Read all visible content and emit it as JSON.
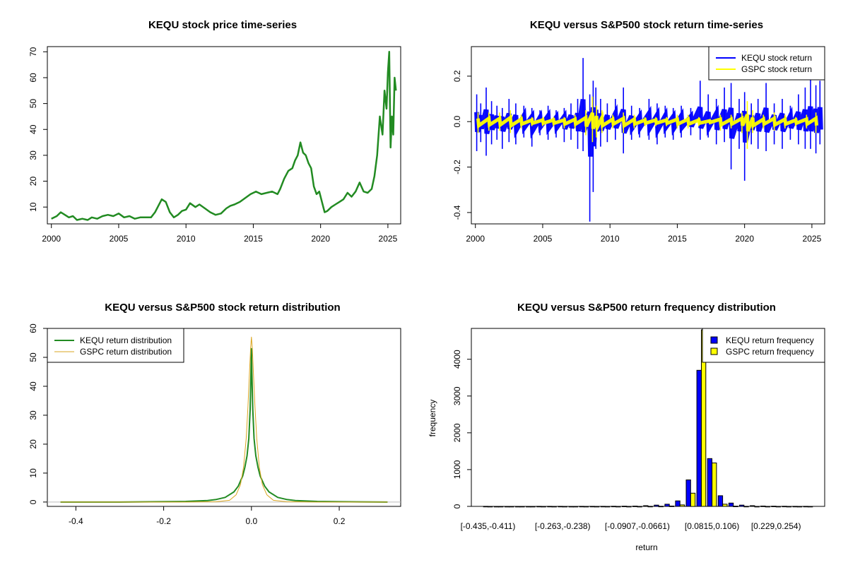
{
  "chart_data": [
    {
      "type": "line",
      "title": "KEQU stock price time-series",
      "xlabel": "",
      "ylabel": "",
      "xlim": [
        1999.7,
        2025.95
      ],
      "ylim": [
        3.5,
        72
      ],
      "xticks": [
        2000,
        2005,
        2010,
        2015,
        2020,
        2025
      ],
      "yticks": [
        10,
        20,
        30,
        40,
        50,
        60,
        70
      ],
      "series": [
        {
          "name": "KEQU price",
          "color": "#228B22",
          "x": [
            2000.0,
            2000.4,
            2000.7,
            2001.0,
            2001.3,
            2001.6,
            2001.9,
            2002.3,
            2002.7,
            2003.0,
            2003.4,
            2003.8,
            2004.2,
            2004.6,
            2005.0,
            2005.4,
            2005.8,
            2006.2,
            2006.6,
            2007.0,
            2007.4,
            2007.7,
            2007.9,
            2008.2,
            2008.5,
            2008.8,
            2009.1,
            2009.4,
            2009.7,
            2010.0,
            2010.3,
            2010.7,
            2011.0,
            2011.4,
            2011.8,
            2012.2,
            2012.6,
            2013.0,
            2013.3,
            2013.6,
            2014.0,
            2014.4,
            2014.8,
            2015.2,
            2015.6,
            2016.0,
            2016.4,
            2016.8,
            2017.0,
            2017.3,
            2017.6,
            2017.9,
            2018.1,
            2018.3,
            2018.5,
            2018.7,
            2018.9,
            2019.1,
            2019.3,
            2019.5,
            2019.7,
            2019.9,
            2020.1,
            2020.3,
            2020.5,
            2020.8,
            2021.1,
            2021.4,
            2021.7,
            2022.0,
            2022.3,
            2022.6,
            2022.9,
            2023.2,
            2023.5,
            2023.8,
            2024.0,
            2024.2,
            2024.4,
            2024.6,
            2024.75,
            2024.9,
            2025.0,
            2025.1,
            2025.2,
            2025.3,
            2025.4,
            2025.5,
            2025.6
          ],
          "y": [
            5.5,
            6.5,
            8.0,
            7.0,
            6.0,
            6.5,
            5.0,
            5.5,
            5.0,
            6.0,
            5.5,
            6.5,
            7.0,
            6.5,
            7.5,
            6.0,
            6.5,
            5.5,
            6.0,
            6.0,
            6.0,
            8.0,
            10.0,
            13.0,
            12.0,
            8.0,
            6.0,
            7.0,
            8.5,
            9.0,
            11.5,
            10.0,
            11.0,
            9.5,
            8.0,
            7.0,
            7.5,
            9.5,
            10.5,
            11.0,
            12.0,
            13.5,
            15.0,
            16.0,
            15.0,
            15.5,
            16.0,
            15.0,
            17.0,
            21.0,
            24.0,
            25.0,
            28.0,
            30.0,
            35.0,
            31.0,
            30.0,
            27.0,
            25.0,
            18.0,
            15.0,
            16.0,
            12.0,
            8.0,
            8.5,
            10.0,
            11.0,
            12.0,
            13.0,
            15.5,
            14.0,
            16.0,
            19.5,
            16.0,
            15.5,
            17.0,
            22.0,
            30.0,
            45.0,
            38.0,
            55.0,
            48.0,
            62.0,
            70.0,
            33.0,
            45.0,
            38.0,
            60.0,
            55.0
          ]
        }
      ]
    },
    {
      "type": "line",
      "title": "KEQU versus S&P500 stock return time-series",
      "xlabel": "",
      "ylabel": "",
      "xlim": [
        1999.7,
        2025.95
      ],
      "ylim": [
        -0.45,
        0.33
      ],
      "xticks": [
        2000,
        2005,
        2010,
        2015,
        2020,
        2025
      ],
      "yticks": [
        -0.4,
        -0.2,
        0.0,
        0.2
      ],
      "series": [
        {
          "name": "KEQU stock return",
          "color": "#0000FF",
          "x": [
            2000.1,
            2000.4,
            2000.8,
            2001.2,
            2001.6,
            2002.0,
            2002.5,
            2003.0,
            2003.6,
            2004.2,
            2004.8,
            2005.4,
            2006.0,
            2006.6,
            2007.1,
            2007.6,
            2008.0,
            2008.5,
            2008.75,
            2008.95,
            2009.3,
            2009.8,
            2010.4,
            2011.0,
            2011.6,
            2012.2,
            2012.9,
            2013.5,
            2014.1,
            2014.7,
            2015.3,
            2016.0,
            2016.7,
            2017.3,
            2017.9,
            2018.5,
            2019.0,
            2019.6,
            2020.0,
            2020.5,
            2021.0,
            2021.6,
            2022.2,
            2022.8,
            2023.4,
            2024.0,
            2024.5,
            2024.9,
            2025.3,
            2025.6
          ],
          "hi": [
            0.12,
            0.08,
            0.15,
            0.09,
            0.07,
            0.06,
            0.1,
            0.08,
            0.07,
            0.06,
            0.05,
            0.07,
            0.05,
            0.06,
            0.08,
            0.1,
            0.28,
            0.12,
            0.18,
            0.15,
            0.1,
            0.08,
            0.1,
            0.15,
            0.07,
            0.06,
            0.1,
            0.08,
            0.07,
            0.06,
            0.07,
            0.06,
            0.18,
            0.12,
            0.1,
            0.15,
            0.17,
            0.1,
            0.13,
            0.08,
            0.1,
            0.17,
            0.08,
            0.1,
            0.07,
            0.12,
            0.15,
            0.19,
            0.16,
            0.18
          ],
          "lo": [
            -0.13,
            -0.09,
            -0.15,
            -0.1,
            -0.08,
            -0.12,
            -0.09,
            -0.1,
            -0.07,
            -0.11,
            -0.06,
            -0.08,
            -0.07,
            -0.09,
            -0.08,
            -0.12,
            -0.13,
            -0.44,
            -0.31,
            -0.12,
            -0.11,
            -0.09,
            -0.08,
            -0.14,
            -0.08,
            -0.07,
            -0.08,
            -0.1,
            -0.07,
            -0.08,
            -0.07,
            -0.06,
            -0.08,
            -0.07,
            -0.1,
            -0.09,
            -0.21,
            -0.12,
            -0.26,
            -0.1,
            -0.12,
            -0.13,
            -0.1,
            -0.12,
            -0.08,
            -0.1,
            -0.12,
            -0.12,
            -0.14,
            -0.1
          ]
        },
        {
          "name": "GSPC stock return",
          "color": "#FFFF00",
          "x": [
            2000.2,
            2001.0,
            2001.8,
            2002.6,
            2003.4,
            2004.2,
            2005.0,
            2005.8,
            2006.6,
            2007.4,
            2008.2,
            2008.7,
            2009.0,
            2009.4,
            2010.2,
            2011.0,
            2011.8,
            2012.6,
            2013.4,
            2014.2,
            2015.0,
            2015.8,
            2016.6,
            2017.4,
            2018.2,
            2019.0,
            2019.8,
            2020.2,
            2020.6,
            2021.4,
            2022.2,
            2023.0,
            2023.8,
            2024.6,
            2025.3
          ],
          "hi": [
            0.04,
            0.04,
            0.04,
            0.05,
            0.03,
            0.02,
            0.02,
            0.02,
            0.02,
            0.03,
            0.05,
            0.11,
            0.07,
            0.05,
            0.03,
            0.04,
            0.03,
            0.02,
            0.02,
            0.02,
            0.03,
            0.03,
            0.02,
            0.01,
            0.03,
            0.03,
            0.04,
            0.09,
            0.05,
            0.03,
            0.04,
            0.03,
            0.02,
            0.03,
            0.04
          ],
          "lo": [
            -0.05,
            -0.04,
            -0.04,
            -0.05,
            -0.03,
            -0.02,
            -0.02,
            -0.02,
            -0.03,
            -0.03,
            -0.06,
            -0.09,
            -0.07,
            -0.05,
            -0.03,
            -0.05,
            -0.03,
            -0.02,
            -0.02,
            -0.02,
            -0.03,
            -0.03,
            -0.02,
            -0.01,
            -0.04,
            -0.03,
            -0.05,
            -0.12,
            -0.05,
            -0.03,
            -0.04,
            -0.03,
            -0.02,
            -0.03,
            -0.05
          ]
        }
      ],
      "legend": [
        "KEQU stock return",
        "GSPC stock return"
      ],
      "legend_position": "top-right"
    },
    {
      "type": "line",
      "title": "KEQU versus S&P500 stock return distribution",
      "xlabel": "",
      "ylabel": "",
      "xlim": [
        -0.465,
        0.34
      ],
      "ylim": [
        -1.5,
        60
      ],
      "xticks": [
        -0.4,
        -0.2,
        0.0,
        0.2
      ],
      "xtick_labels": [
        "-0.4",
        "-0.2",
        "0.0",
        "0.2"
      ],
      "yticks": [
        0,
        10,
        20,
        30,
        40,
        50,
        60
      ],
      "series": [
        {
          "name": "KEQU return distribution",
          "color": "#228B22",
          "x": [
            -0.435,
            -0.3,
            -0.15,
            -0.1,
            -0.08,
            -0.06,
            -0.04,
            -0.03,
            -0.02,
            -0.015,
            -0.01,
            -0.006,
            -0.003,
            -0.001,
            0.0,
            0.001,
            0.003,
            0.006,
            0.01,
            0.015,
            0.02,
            0.03,
            0.04,
            0.06,
            0.08,
            0.1,
            0.15,
            0.2,
            0.31
          ],
          "y": [
            0,
            0,
            0.2,
            0.5,
            0.9,
            1.6,
            3.5,
            5.5,
            9.0,
            12.0,
            16.0,
            22.0,
            32.0,
            45.0,
            53.0,
            45.0,
            32.0,
            22.0,
            16.0,
            12.0,
            9.0,
            5.5,
            3.5,
            1.6,
            0.9,
            0.5,
            0.2,
            0.1,
            0
          ]
        },
        {
          "name": "GSPC return distribution",
          "color": "#DAA520",
          "x": [
            -0.435,
            -0.15,
            -0.08,
            -0.05,
            -0.035,
            -0.025,
            -0.018,
            -0.012,
            -0.008,
            -0.005,
            -0.002,
            0.0,
            0.002,
            0.005,
            0.008,
            0.012,
            0.018,
            0.025,
            0.035,
            0.05,
            0.08,
            0.15,
            0.31
          ],
          "y": [
            0,
            0,
            0.1,
            0.6,
            2.5,
            6.0,
            12.0,
            22.0,
            33.0,
            43.0,
            53.0,
            57.0,
            53.0,
            43.0,
            33.0,
            22.0,
            12.0,
            6.0,
            2.5,
            0.6,
            0.1,
            0,
            0
          ]
        }
      ],
      "legend": [
        "KEQU return distribution",
        "GSPC return distribution"
      ],
      "legend_position": "top-left"
    },
    {
      "type": "bar",
      "title": "KEQU versus S&P500 return frequency distribution",
      "xlabel": "return",
      "ylabel": "frequency",
      "ylim": [
        0,
        4800
      ],
      "yticks": [
        0,
        1000,
        2000,
        3000,
        4000
      ],
      "tick_labels": [
        "[-0.435,-0.411)",
        "[-0.263,-0.238)",
        "[-0.0907,-0.0661)",
        "[0.0815,0.106)",
        "[0.229,0.254)"
      ],
      "tick_label_bins": [
        0,
        7,
        14,
        21,
        27
      ],
      "bins": 31,
      "series": [
        {
          "name": "KEQU return frequency",
          "color": "#0000FF",
          "values": [
            1,
            0,
            0,
            0,
            0,
            1,
            1,
            2,
            0,
            1,
            1,
            2,
            3,
            5,
            8,
            20,
            35,
            60,
            150,
            720,
            3700,
            1300,
            290,
            90,
            35,
            20,
            10,
            5,
            3,
            2,
            1
          ]
        },
        {
          "name": "GSPC return frequency",
          "color": "#FFFF00",
          "values": [
            0,
            0,
            0,
            0,
            0,
            0,
            0,
            0,
            0,
            0,
            0,
            0,
            0,
            0,
            0,
            1,
            3,
            10,
            40,
            360,
            4800,
            1180,
            60,
            5,
            1,
            0,
            0,
            0,
            0,
            0,
            0
          ]
        }
      ],
      "legend": [
        "KEQU return frequency",
        "GSPC return frequency"
      ],
      "legend_position": "top-right"
    }
  ]
}
